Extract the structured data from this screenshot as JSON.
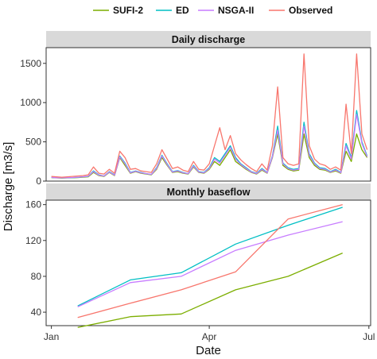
{
  "chart_data": [
    {
      "type": "line",
      "facet_title": "Daily discharge",
      "ylim": [
        0,
        1700
      ],
      "yticks": [
        0,
        500,
        1000,
        1500
      ],
      "x": [
        0,
        3,
        6,
        9,
        12,
        15,
        18,
        21,
        24,
        27,
        30,
        33,
        36,
        39,
        42,
        45,
        48,
        51,
        54,
        57,
        60,
        63,
        66,
        69,
        72,
        75,
        78,
        81,
        84,
        87,
        90,
        93,
        96,
        99,
        102,
        105,
        108,
        111,
        114,
        117,
        120,
        123,
        126,
        129,
        132,
        135,
        138,
        141,
        144,
        147,
        150,
        153,
        156,
        159,
        162,
        165,
        168,
        171,
        174,
        177,
        180
      ],
      "series": [
        {
          "name": "SUFI-2",
          "color": "#7cae00",
          "values": [
            45,
            40,
            38,
            40,
            42,
            45,
            50,
            55,
            110,
            70,
            60,
            110,
            70,
            300,
            200,
            100,
            120,
            100,
            90,
            80,
            150,
            300,
            200,
            110,
            120,
            100,
            90,
            180,
            110,
            100,
            150,
            250,
            200,
            300,
            400,
            250,
            200,
            150,
            110,
            90,
            140,
            100,
            300,
            600,
            200,
            150,
            130,
            140,
            600,
            300,
            200,
            150,
            140,
            110,
            130,
            100,
            380,
            250,
            600,
            400,
            300
          ]
        },
        {
          "name": "ED",
          "color": "#00bfc4",
          "values": [
            48,
            42,
            40,
            43,
            45,
            48,
            55,
            60,
            130,
            80,
            65,
            120,
            80,
            320,
            230,
            110,
            130,
            110,
            95,
            85,
            170,
            330,
            220,
            120,
            135,
            110,
            95,
            200,
            120,
            110,
            170,
            300,
            250,
            350,
            450,
            300,
            220,
            170,
            120,
            100,
            160,
            110,
            320,
            700,
            230,
            170,
            150,
            160,
            750,
            350,
            230,
            170,
            160,
            120,
            150,
            110,
            480,
            300,
            900,
            500,
            320
          ]
        },
        {
          "name": "NSGA-II",
          "color": "#c77cff",
          "values": [
            48,
            43,
            42,
            44,
            46,
            50,
            55,
            62,
            120,
            75,
            65,
            115,
            75,
            310,
            220,
            105,
            125,
            105,
            95,
            85,
            160,
            320,
            210,
            115,
            130,
            105,
            95,
            190,
            115,
            105,
            160,
            280,
            230,
            330,
            430,
            280,
            210,
            160,
            115,
            95,
            150,
            105,
            310,
            650,
            220,
            160,
            140,
            150,
            700,
            330,
            220,
            160,
            150,
            115,
            140,
            105,
            450,
            280,
            850,
            480,
            310
          ]
        },
        {
          "name": "Observed",
          "color": "#f8766d",
          "values": [
            60,
            55,
            50,
            55,
            60,
            65,
            70,
            80,
            180,
            100,
            90,
            150,
            100,
            380,
            300,
            150,
            160,
            130,
            120,
            110,
            220,
            400,
            280,
            160,
            180,
            140,
            120,
            250,
            150,
            140,
            220,
            450,
            680,
            400,
            580,
            350,
            270,
            210,
            160,
            120,
            220,
            140,
            450,
            1200,
            300,
            220,
            200,
            220,
            1620,
            450,
            280,
            220,
            200,
            150,
            180,
            140,
            980,
            350,
            1620,
            600,
            400
          ]
        }
      ]
    },
    {
      "type": "line",
      "facet_title": "Monthly baseflow",
      "ylim": [
        25,
        165
      ],
      "yticks": [
        40,
        80,
        120,
        160
      ],
      "x": [
        15,
        45,
        74,
        105,
        135,
        166
      ],
      "series": [
        {
          "name": "SUFI-2",
          "color": "#7cae00",
          "values": [
            23,
            35,
            38,
            65,
            80,
            106
          ]
        },
        {
          "name": "ED",
          "color": "#00bfc4",
          "values": [
            47,
            76,
            84,
            116,
            137,
            157
          ]
        },
        {
          "name": "NSGA-II",
          "color": "#c77cff",
          "values": [
            46,
            73,
            80,
            109,
            126,
            141
          ]
        },
        {
          "name": "Observed",
          "color": "#f8766d",
          "values": [
            34,
            50,
            65,
            85,
            144,
            160
          ]
        }
      ]
    }
  ],
  "shared_x": {
    "label": "Date",
    "range": [
      -3,
      182
    ],
    "ticks": [
      {
        "label": "Jan",
        "value": 0
      },
      {
        "label": "Apr",
        "value": 90
      },
      {
        "label": "Jul",
        "value": 181
      }
    ]
  },
  "ylabel": "Discharge [m3/s]",
  "legend": {
    "placement": "top",
    "entries": [
      "SUFI-2",
      "ED",
      "NSGA-II",
      "Observed"
    ]
  }
}
